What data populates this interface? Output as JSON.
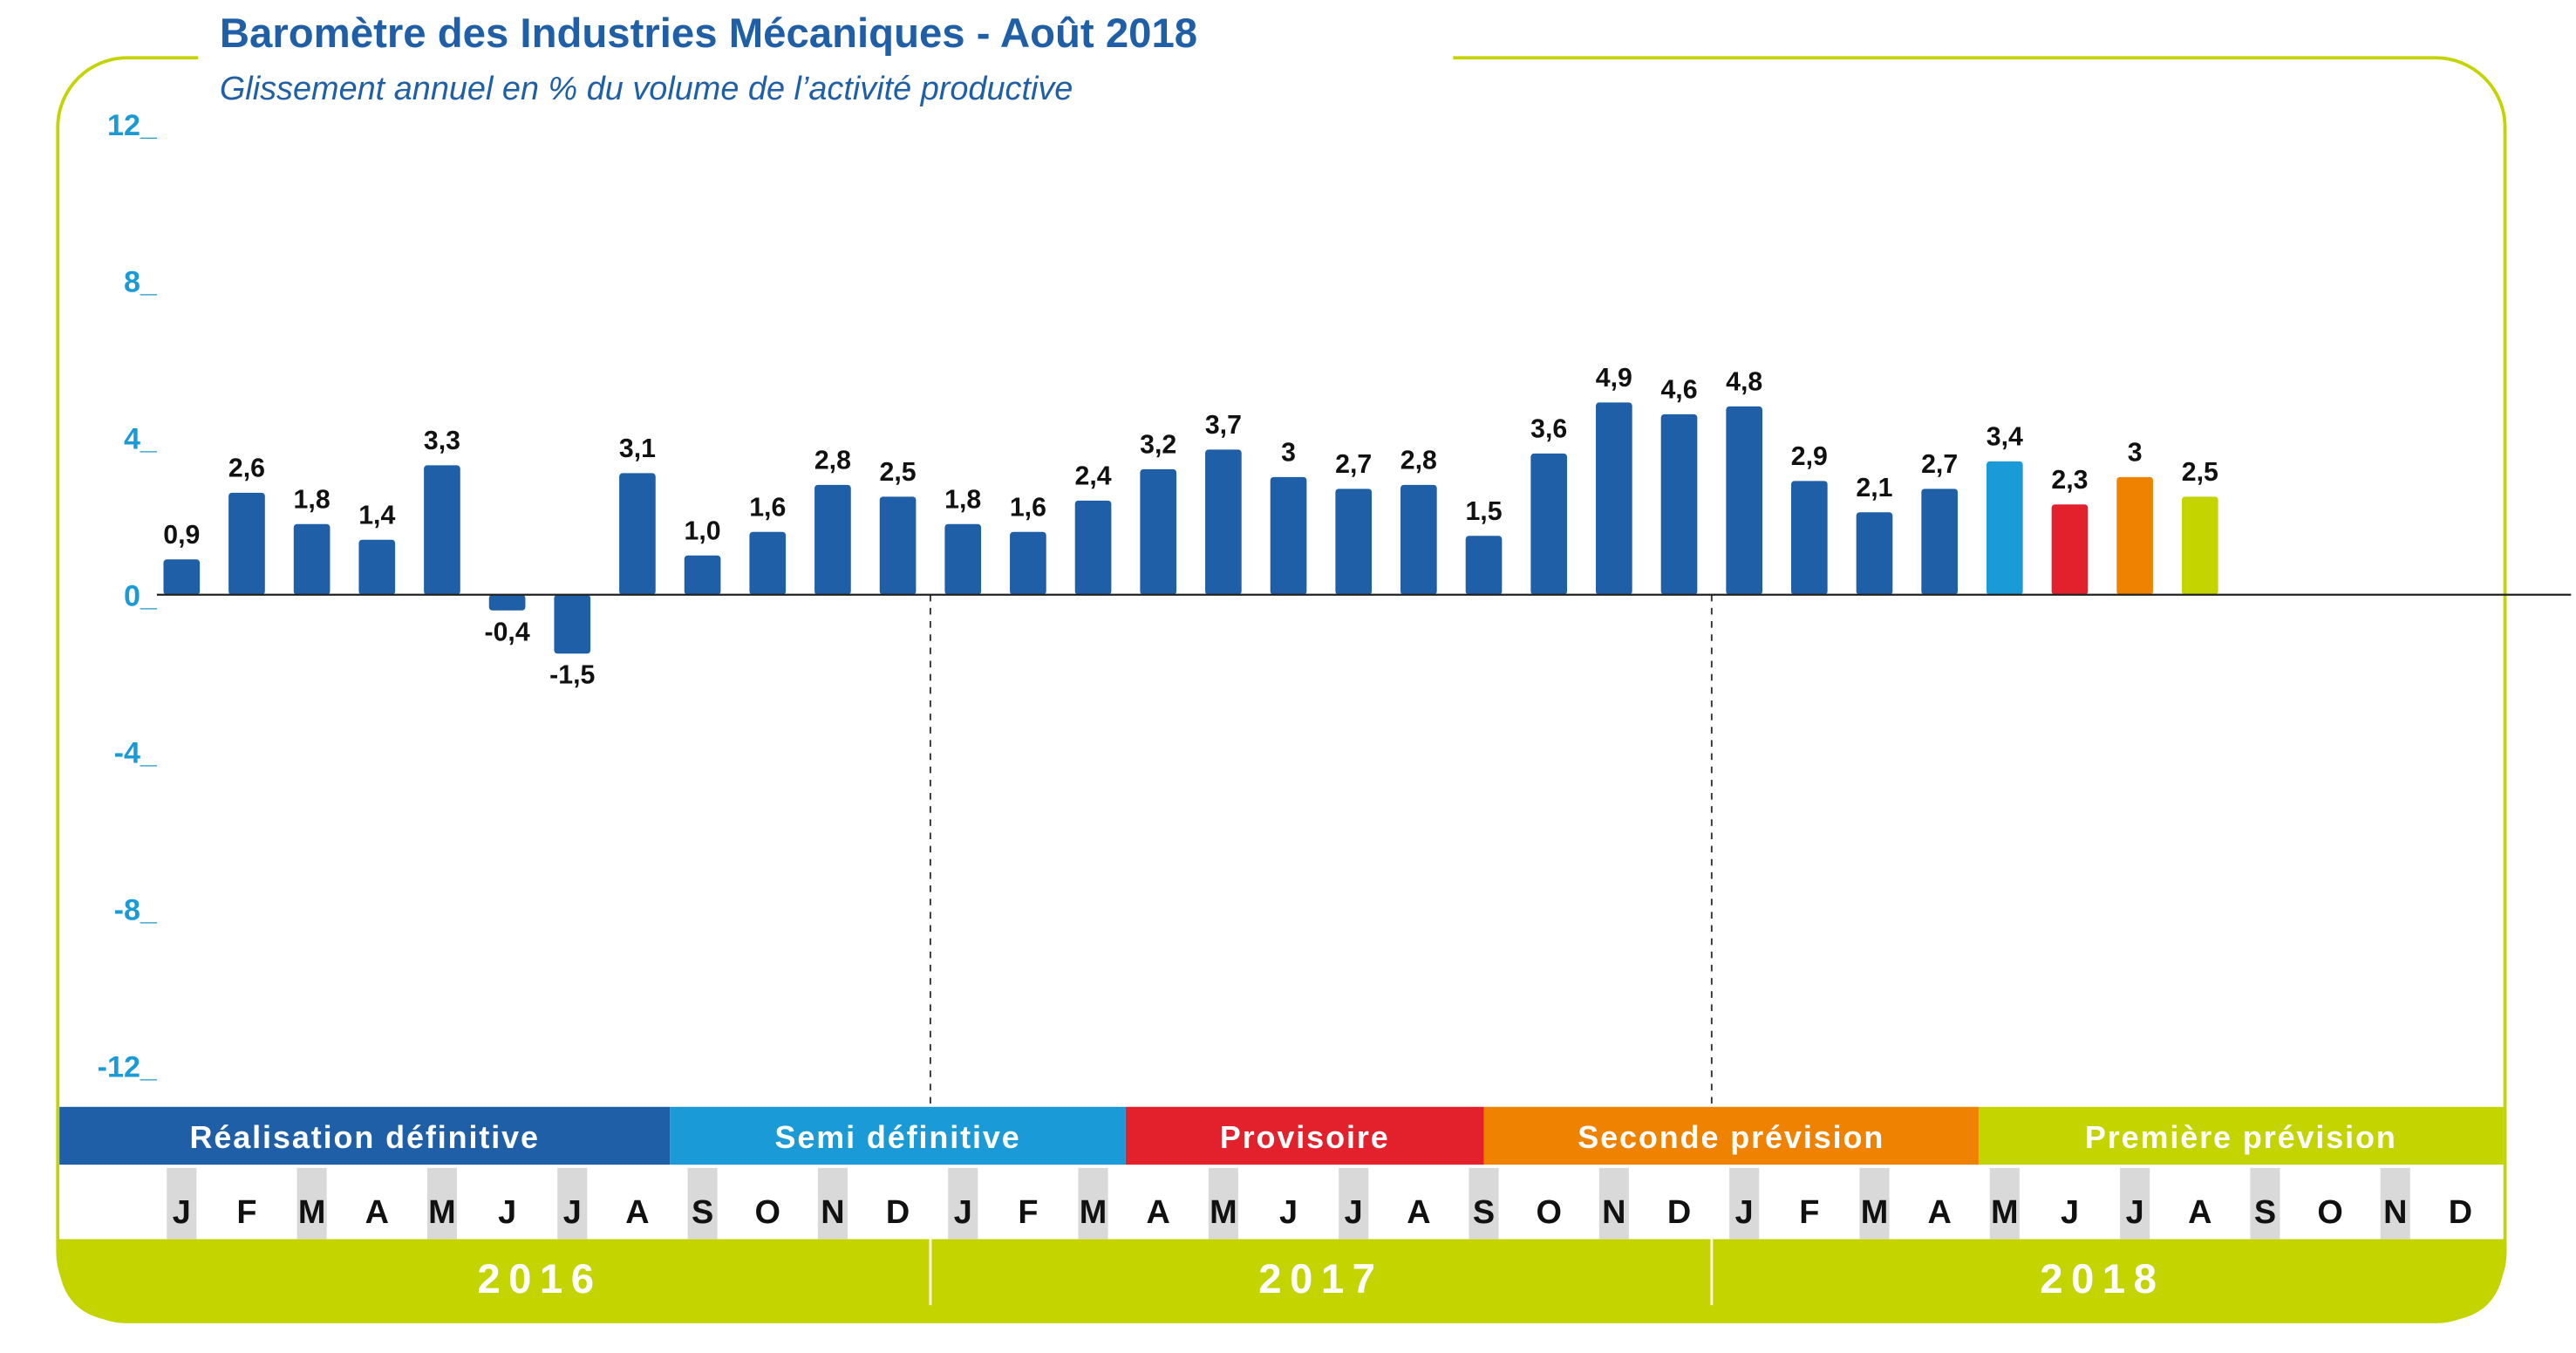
{
  "chart_data": {
    "type": "bar",
    "title": "Baromètre des Industries Mécaniques - Août 2018",
    "subtitle": "Glissement annuel en % du volume de l’activité productive",
    "categories": [
      "J",
      "F",
      "M",
      "A",
      "M",
      "J",
      "J",
      "A",
      "S",
      "O",
      "N",
      "D",
      "J",
      "F",
      "M",
      "A",
      "M",
      "J",
      "J",
      "A",
      "S",
      "O",
      "N",
      "D",
      "J",
      "F",
      "M",
      "A",
      "M",
      "J",
      "J",
      "A",
      "S",
      "O",
      "N",
      "D"
    ],
    "values": [
      0.9,
      2.6,
      1.8,
      1.4,
      3.3,
      -0.4,
      -1.5,
      3.1,
      1.0,
      1.6,
      2.8,
      2.5,
      1.8,
      1.6,
      2.4,
      3.2,
      3.7,
      3,
      2.7,
      2.8,
      1.5,
      3.6,
      4.9,
      4.6,
      4.8,
      2.9,
      2.1,
      2.7,
      3.4,
      2.3,
      3,
      2.5,
      null,
      null,
      null,
      null
    ],
    "value_labels": [
      "0,9",
      "2,6",
      "1,8",
      "1,4",
      "3,3",
      "-0,4",
      "-1,5",
      "3,1",
      "1,0",
      "1,6",
      "2,8",
      "2,5",
      "1,8",
      "1,6",
      "2,4",
      "3,2",
      "3,7",
      "3",
      "2,7",
      "2,8",
      "1,5",
      "3,6",
      "4,9",
      "4,6",
      "4,8",
      "2,9",
      "2,1",
      "2,7",
      "3,4",
      "2,3",
      "3",
      "2,5",
      null,
      null,
      null,
      null
    ],
    "colors": [
      "#1f5fa8",
      "#1f5fa8",
      "#1f5fa8",
      "#1f5fa8",
      "#1f5fa8",
      "#1f5fa8",
      "#1f5fa8",
      "#1f5fa8",
      "#1f5fa8",
      "#1f5fa8",
      "#1f5fa8",
      "#1f5fa8",
      "#1f5fa8",
      "#1f5fa8",
      "#1f5fa8",
      "#1f5fa8",
      "#1f5fa8",
      "#1f5fa8",
      "#1f5fa8",
      "#1f5fa8",
      "#1f5fa8",
      "#1f5fa8",
      "#1f5fa8",
      "#1f5fa8",
      "#1f5fa8",
      "#1f5fa8",
      "#1f5fa8",
      "#1f5fa8",
      "#1a9ad6",
      "#e3212d",
      "#ef8200",
      "#c3d400",
      null,
      null,
      null,
      null
    ],
    "ylim": [
      -12,
      12
    ],
    "yticks": [
      {
        "value": 12,
        "label": "12_"
      },
      {
        "value": 8,
        "label": "8_"
      },
      {
        "value": 4,
        "label": "4_"
      },
      {
        "value": 0,
        "label": "0_"
      },
      {
        "value": -4,
        "label": "-4_"
      },
      {
        "value": -8,
        "label": "-8_"
      },
      {
        "value": -12,
        "label": "-12_"
      }
    ],
    "phases": [
      {
        "label": "Réalisation définitive",
        "color": "#1f5fa8"
      },
      {
        "label": "Semi définitive",
        "color": "#1a9ad6"
      },
      {
        "label": "Provisoire",
        "color": "#e3212d"
      },
      {
        "label": "Seconde prévision",
        "color": "#ef8200"
      },
      {
        "label": "Première prévision",
        "color": "#c3d400"
      }
    ],
    "years": [
      "2016",
      "2017",
      "2018"
    ]
  }
}
